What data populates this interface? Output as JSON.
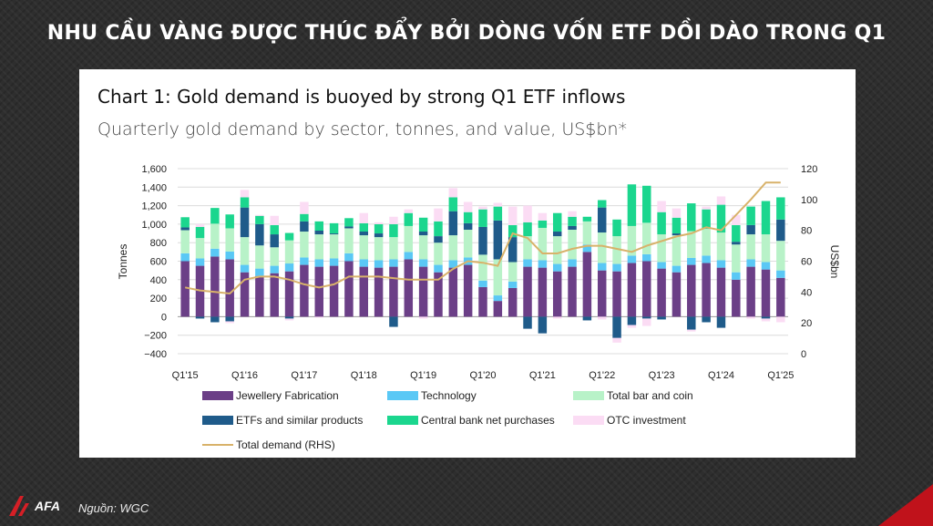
{
  "header": {
    "title": "NHU CẦU VÀNG ĐƯỢC THÚC ĐẨY BỞI DÒNG VỐN ETF DỒI DÀO TRONG Q1"
  },
  "footer": {
    "source": "Nguồn: WGC",
    "logo_text": "AFA"
  },
  "colors": {
    "jewellery": "#6b3f87",
    "technology": "#5ac8f5",
    "bar_coin": "#b8f2c8",
    "etf": "#1f5b8a",
    "central_bank": "#1bd68e",
    "otc": "#fbdcf4",
    "total_line": "#d8b26a",
    "accent": "#c0121b"
  },
  "chart_data": {
    "type": "bar",
    "title": "Chart 1: Gold demand is buoyed by strong Q1 ETF inflows",
    "subtitle": "Quarterly gold demand by sector, tonnes, and value, US$bn*",
    "ylabel": "Tonnes",
    "y2label": "US$bn",
    "ylim": [
      -400,
      1600
    ],
    "y2lim": [
      0,
      120
    ],
    "yticks": [
      "1,600",
      "1,400",
      "1,200",
      "1,000",
      "800",
      "600",
      "400",
      "200",
      "0",
      "−200",
      "−400"
    ],
    "y2ticks": [
      "120",
      "100",
      "80",
      "60",
      "40",
      "20",
      "0"
    ],
    "xtick_labels": [
      "Q1'15",
      "Q1'16",
      "Q1'17",
      "Q1'18",
      "Q1'19",
      "Q1'20",
      "Q1'21",
      "Q1'22",
      "Q1'23",
      "Q1'24",
      "Q1'25"
    ],
    "categories": [
      "Q1'15",
      "Q2'15",
      "Q3'15",
      "Q4'15",
      "Q1'16",
      "Q2'16",
      "Q3'16",
      "Q4'16",
      "Q1'17",
      "Q2'17",
      "Q3'17",
      "Q4'17",
      "Q1'18",
      "Q2'18",
      "Q3'18",
      "Q4'18",
      "Q1'19",
      "Q2'19",
      "Q3'19",
      "Q4'19",
      "Q1'20",
      "Q2'20",
      "Q3'20",
      "Q4'20",
      "Q1'21",
      "Q2'21",
      "Q3'21",
      "Q4'21",
      "Q1'22",
      "Q2'22",
      "Q3'22",
      "Q4'22",
      "Q1'23",
      "Q2'23",
      "Q3'23",
      "Q4'23",
      "Q1'24",
      "Q2'24",
      "Q3'24",
      "Q4'24",
      "Q1'25"
    ],
    "series": [
      {
        "name": "Jewellery Fabrication",
        "color_key": "jewellery",
        "values": [
          600,
          550,
          650,
          620,
          480,
          440,
          470,
          490,
          560,
          540,
          550,
          600,
          540,
          530,
          540,
          620,
          540,
          480,
          530,
          560,
          320,
          170,
          310,
          540,
          530,
          490,
          540,
          700,
          500,
          490,
          580,
          600,
          520,
          480,
          560,
          580,
          530,
          400,
          540,
          510,
          420
        ]
      },
      {
        "name": "Technology",
        "color_key": "technology",
        "values": [
          85,
          80,
          85,
          85,
          80,
          80,
          80,
          85,
          80,
          80,
          80,
          85,
          80,
          80,
          80,
          80,
          80,
          80,
          80,
          80,
          70,
          60,
          70,
          80,
          80,
          80,
          80,
          80,
          80,
          80,
          80,
          75,
          70,
          70,
          75,
          80,
          80,
          80,
          80,
          80,
          80
        ]
      },
      {
        "name": "Total bar and coin",
        "color_key": "bar_coin",
        "values": [
          250,
          220,
          270,
          250,
          300,
          250,
          200,
          250,
          280,
          270,
          260,
          270,
          260,
          250,
          240,
          280,
          260,
          240,
          270,
          300,
          280,
          390,
          210,
          250,
          350,
          300,
          320,
          250,
          330,
          300,
          320,
          340,
          300,
          330,
          290,
          290,
          300,
          300,
          270,
          300,
          320
        ]
      },
      {
        "name": "ETFs and similar products",
        "color_key": "etf",
        "values": [
          30,
          -20,
          -60,
          -50,
          320,
          230,
          140,
          -20,
          110,
          40,
          10,
          20,
          40,
          40,
          -110,
          0,
          40,
          70,
          260,
          70,
          300,
          420,
          270,
          -130,
          -180,
          50,
          40,
          -40,
          270,
          -230,
          -90,
          -20,
          -30,
          20,
          -140,
          -60,
          -120,
          30,
          100,
          -20,
          230
        ]
      },
      {
        "name": "Central bank net purchases",
        "color_key": "central_bank",
        "values": [
          110,
          120,
          170,
          150,
          110,
          90,
          100,
          80,
          80,
          100,
          110,
          90,
          90,
          100,
          140,
          140,
          150,
          160,
          150,
          120,
          190,
          150,
          130,
          150,
          80,
          200,
          100,
          50,
          80,
          180,
          450,
          400,
          240,
          170,
          300,
          210,
          300,
          180,
          200,
          360,
          240
        ]
      },
      {
        "name": "OTC investment",
        "color_key": "otc",
        "values": [
          0,
          30,
          0,
          -20,
          80,
          10,
          100,
          -20,
          130,
          -10,
          0,
          0,
          110,
          20,
          80,
          40,
          -20,
          140,
          100,
          110,
          30,
          40,
          200,
          180,
          80,
          -20,
          60,
          0,
          -30,
          -50,
          -30,
          -80,
          120,
          100,
          -20,
          30,
          90,
          110,
          -20,
          -30,
          -60
        ]
      },
      {
        "name": "Total demand (RHS)",
        "color_key": "total_line",
        "axis": "right",
        "values": [
          43,
          41,
          40,
          39,
          48,
          50,
          50,
          48,
          45,
          43,
          45,
          50,
          50,
          50,
          49,
          48,
          48,
          48,
          55,
          60,
          59,
          57,
          78,
          75,
          65,
          65,
          68,
          70,
          70,
          68,
          66,
          70,
          73,
          76,
          78,
          82,
          80,
          90,
          100,
          111,
          111
        ]
      }
    ],
    "legend": {
      "placement": "bottom",
      "columns": 3
    },
    "grid": "horizontal"
  }
}
